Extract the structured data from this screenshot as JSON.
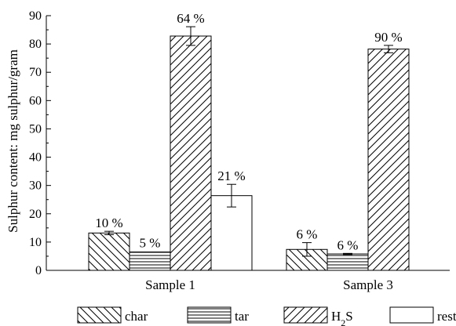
{
  "chart_data": {
    "type": "bar",
    "categories": [
      "Sample 1",
      "Sample 3"
    ],
    "ylabel": "Sulphur content: mg sulphur/gram",
    "xlabel": "",
    "ylim": [
      0,
      90
    ],
    "yticks": [
      0,
      10,
      20,
      30,
      40,
      50,
      60,
      70,
      80,
      90
    ],
    "series": [
      {
        "name": "char",
        "pattern": "back-diagonal",
        "values": [
          13.2,
          7.4
        ],
        "errors": [
          0.6,
          2.4
        ],
        "labels": [
          "10 %",
          "6 %"
        ]
      },
      {
        "name": "tar",
        "pattern": "horizontal",
        "values": [
          6.5,
          5.8
        ],
        "errors": [
          null,
          0.2
        ],
        "labels": [
          "5 %",
          "6 %"
        ]
      },
      {
        "name": "H2S",
        "legend_main": "H",
        "legend_sub": "2",
        "legend_tail": "S",
        "pattern": "forward-diagonal",
        "values": [
          82.8,
          78.2
        ],
        "errors": [
          3.3,
          1.3
        ],
        "labels": [
          "64 %",
          "90 %"
        ]
      },
      {
        "name": "rest",
        "pattern": "none",
        "values": [
          26.4,
          null
        ],
        "errors": [
          4.0,
          null
        ],
        "labels": [
          "21 %",
          ""
        ]
      }
    ],
    "colors": {
      "stroke": "#000000",
      "fill": "#ffffff"
    }
  }
}
